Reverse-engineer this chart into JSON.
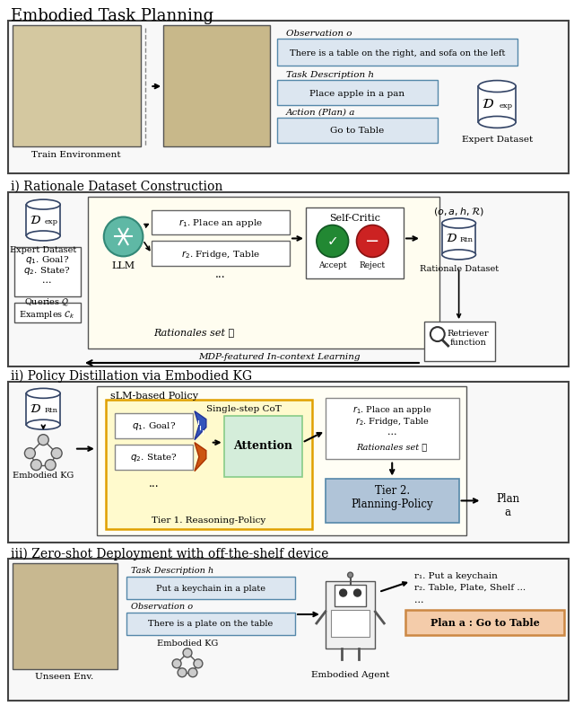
{
  "title_main": "Embodied Task Planning",
  "title_i": "i) Rationale Dataset Construction",
  "title_ii": "ii) Policy Distillation via Embodied KG",
  "title_iii": "iii) Zero-shot Deployment with off-the-shelf device",
  "bg_color": "#ffffff",
  "teal_llm": "#5fb8a5",
  "obs_text": "There is a table on the right, and sofa on the left",
  "task_text": "Place apple in a pan",
  "action_text": "Go to Table",
  "rationale_set": "Rationales set ℛ",
  "self_critic": "Self-Critic",
  "accept_text": "Accept",
  "reject_text": "Reject",
  "expert_dataset": "Expert Dataset",
  "rationale_dataset": "Rationale Dataset",
  "mdp_text": "MDP-featured In-context Learning",
  "retriever_text": "Retriever\nfunction",
  "attention_text": "Attention",
  "single_step": "Single-step CoT",
  "tier1_text": "Tier 1. Reasoning-Policy",
  "tier2_text": "Tier 2.\nPlanning-Policy",
  "slm_text": "sLM-based Policy",
  "embodied_kg": "Embodied KG",
  "plan_text": "Plan\na",
  "iii_task_desc": "Task Description h",
  "iii_task_val": "Put a keychain in a plate",
  "iii_obs_label": "Observation o",
  "iii_obs_val": "There is a plate on the table",
  "iii_embodied_kg": "Embodied KG",
  "iii_agent": "Embodied Agent",
  "iii_r1": "r₁. Put a keychain",
  "iii_r2": "r₂. Table, Plate, Shelf ...",
  "iii_plan": "Plan a : Go to Table",
  "unseen_env": "Unseen Env.",
  "train_env": "Train Environment",
  "obs_label": "Observation o",
  "task_desc_label": "Task Description h",
  "action_label": "Action (Plan) a"
}
